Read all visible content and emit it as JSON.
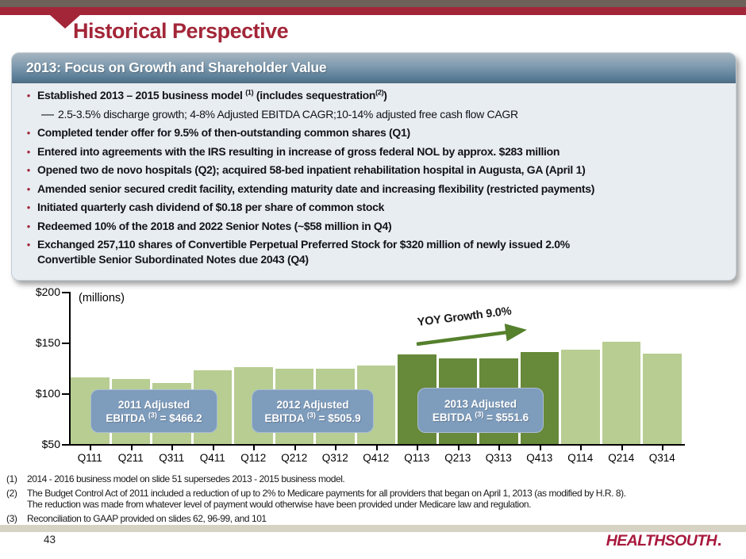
{
  "slide": {
    "title": "Historical Perspective",
    "page_number": "43",
    "logo_text": "HEALTHSOUTH"
  },
  "colors": {
    "brand_crimson": "#a32638",
    "top_bar_brown": "#6e6159",
    "bar_light_green": "#b7cd92",
    "bar_dark_green": "#67893a",
    "callout_blue": "#7e9cbc",
    "arrow_green": "#55802c",
    "panel_bg": "#e8edf2",
    "footer_beige": "#d6d2c4"
  },
  "panel": {
    "header": "2013: Focus on Growth and Shareholder Value",
    "bullets": [
      {
        "type": "bullet",
        "bold": true,
        "runs": [
          {
            "t": "Established 2013 – 2015 business model "
          },
          {
            "t": "(1)",
            "sup": true
          },
          {
            "t": " (includes sequestration"
          },
          {
            "t": "(2)",
            "sup": true
          },
          {
            "t": ")"
          }
        ]
      },
      {
        "type": "dash",
        "bold": false,
        "runs": [
          {
            "t": "2.5-3.5% discharge growth; 4-8% Adjusted EBITDA CAGR;10-14% adjusted free cash flow CAGR"
          }
        ]
      },
      {
        "type": "bullet",
        "bold": true,
        "runs": [
          {
            "t": "Completed tender offer for 9.5% of then-outstanding common shares (Q1)"
          }
        ]
      },
      {
        "type": "bullet",
        "bold": true,
        "runs": [
          {
            "t": "Entered into agreements with the IRS resulting in increase of gross federal NOL by approx. $283 million"
          }
        ]
      },
      {
        "type": "bullet",
        "bold": true,
        "runs": [
          {
            "t": "Opened two de novo hospitals (Q2); acquired 58-bed inpatient rehabilitation hospital in Augusta, GA (April 1)"
          }
        ]
      },
      {
        "type": "bullet",
        "bold": true,
        "runs": [
          {
            "t": "Amended senior secured credit facility, extending maturity date and increasing flexibility (restricted payments)"
          }
        ]
      },
      {
        "type": "bullet",
        "bold": true,
        "runs": [
          {
            "t": "Initiated quarterly cash dividend of $0.18 per share of common stock"
          }
        ]
      },
      {
        "type": "bullet",
        "bold": true,
        "runs": [
          {
            "t": "Redeemed 10% of the 2018 and 2022 Senior Notes (~$58 million in Q4)"
          }
        ]
      },
      {
        "type": "bullet",
        "bold": true,
        "runs": [
          {
            "t": "Exchanged 257,110 shares of Convertible Perpetual Preferred Stock for $320 million of newly issued 2.0%"
          },
          {
            "br": true
          },
          {
            "t": "Convertible Senior Subordinated Notes due 2043 (Q4)"
          }
        ]
      }
    ]
  },
  "chart_data": {
    "type": "bar",
    "title": "",
    "ylabel": "(millions)",
    "ylim": [
      50,
      200
    ],
    "ytick_labels": [
      "$200",
      "$150",
      "$100",
      "$50"
    ],
    "ytick_values": [
      200,
      150,
      100,
      50
    ],
    "grid": false,
    "categories": [
      "Q111",
      "Q211",
      "Q311",
      "Q411",
      "Q112",
      "Q212",
      "Q312",
      "Q412",
      "Q113",
      "Q213",
      "Q313",
      "Q413",
      "Q114",
      "Q214",
      "Q314"
    ],
    "values": [
      116,
      114,
      110,
      123,
      126,
      124,
      124,
      127,
      138,
      134,
      134,
      141,
      143,
      151,
      139
    ],
    "highlight_indices": [
      8,
      9,
      10,
      11
    ],
    "highlight_meaning": "2013 quarters shown in dark green; all other quarters light green",
    "annotations": {
      "growth_arrow_label": "YOY Growth 9.0%",
      "callouts": [
        {
          "title": "2011 Adjusted",
          "label": "EBITDA",
          "footnote_ref": "(3)",
          "value": "= $466.2"
        },
        {
          "title": "2012 Adjusted",
          "label": "EBITDA",
          "footnote_ref": "(3)",
          "value": "= $505.9"
        },
        {
          "title": "2013 Adjusted",
          "label": "EBITDA",
          "footnote_ref": "(3)",
          "value": "= $551.6"
        }
      ]
    }
  },
  "footnotes": [
    {
      "marker": "(1)",
      "lines": [
        "2014 - 2016 business model on slide 51 supersedes 2013 - 2015 business model."
      ]
    },
    {
      "marker": "(2)",
      "lines": [
        "The Budget Control Act of 2011 included a reduction of up to 2% to Medicare payments for all providers that began on April 1, 2013 (as modified by H.R. 8).",
        "The reduction was made from whatever level of payment would otherwise have been provided under Medicare law and regulation."
      ]
    },
    {
      "marker": "(3)",
      "lines": [
        "Reconciliation to GAAP provided on slides 62, 96-99, and 101"
      ]
    }
  ]
}
